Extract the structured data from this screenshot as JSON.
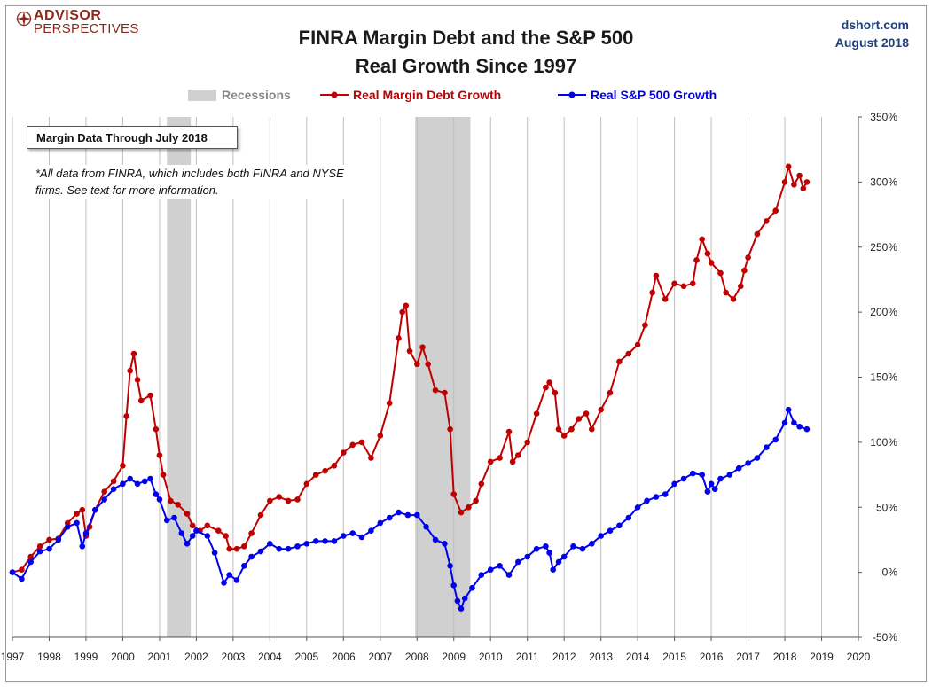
{
  "header": {
    "brand_line1": "ADVISOR",
    "brand_line2": "PERSPECTIVES",
    "title_line1": "FINRA Margin Debt and the S&P 500",
    "title_line2": "Real Growth Since 1997",
    "source": "dshort.com",
    "date": "August 2018"
  },
  "annotations": {
    "box_label": "Margin Data Through July 2018",
    "note": "*All data from FINRA, which includes both FINRA and NYSE firms. See text for more information."
  },
  "colors": {
    "margin": "#c00000",
    "sp500": "#0000ee",
    "recession": "#d0d0d0"
  },
  "chart_data": {
    "type": "line",
    "title": "FINRA Margin Debt and the S&P 500 Real Growth Since 1997",
    "x_axis": {
      "min": 1997,
      "max": 2020,
      "ticks": [
        "1997",
        "1998",
        "1999",
        "2000",
        "2001",
        "2002",
        "2003",
        "2004",
        "2005",
        "2006",
        "2007",
        "2008",
        "2009",
        "2010",
        "2011",
        "2012",
        "2013",
        "2014",
        "2015",
        "2016",
        "2017",
        "2018",
        "2019",
        "2020"
      ]
    },
    "y_axis": {
      "min": -50,
      "max": 350,
      "position": "right",
      "ticks": [
        "-50%",
        "0%",
        "50%",
        "100%",
        "150%",
        "200%",
        "250%",
        "300%",
        "350%"
      ],
      "tick_values": [
        -50,
        0,
        50,
        100,
        150,
        200,
        250,
        300,
        350
      ]
    },
    "grid": "vertical",
    "legend": {
      "placement": "top",
      "entries": [
        "Recessions",
        "Real Margin Debt Growth",
        "Real S&P 500 Growth"
      ]
    },
    "recessions": [
      {
        "start": 2001.2,
        "end": 2001.85
      },
      {
        "start": 2007.95,
        "end": 2009.45
      }
    ],
    "series": [
      {
        "name": "Real Margin Debt Growth",
        "points": [
          [
            1997.0,
            0
          ],
          [
            1997.25,
            2
          ],
          [
            1997.5,
            12
          ],
          [
            1997.75,
            20
          ],
          [
            1998.0,
            25
          ],
          [
            1998.25,
            26
          ],
          [
            1998.5,
            38
          ],
          [
            1998.75,
            45
          ],
          [
            1998.9,
            48
          ],
          [
            1999.0,
            28
          ],
          [
            1999.1,
            35
          ],
          [
            1999.25,
            48
          ],
          [
            1999.5,
            62
          ],
          [
            1999.75,
            70
          ],
          [
            2000.0,
            82
          ],
          [
            2000.1,
            120
          ],
          [
            2000.2,
            155
          ],
          [
            2000.3,
            168
          ],
          [
            2000.4,
            148
          ],
          [
            2000.5,
            132
          ],
          [
            2000.75,
            136
          ],
          [
            2000.9,
            110
          ],
          [
            2001.0,
            90
          ],
          [
            2001.1,
            75
          ],
          [
            2001.3,
            55
          ],
          [
            2001.5,
            52
          ],
          [
            2001.75,
            45
          ],
          [
            2001.9,
            36
          ],
          [
            2002.1,
            32
          ],
          [
            2002.3,
            36
          ],
          [
            2002.6,
            32
          ],
          [
            2002.8,
            28
          ],
          [
            2002.9,
            18
          ],
          [
            2003.1,
            18
          ],
          [
            2003.3,
            20
          ],
          [
            2003.5,
            30
          ],
          [
            2003.75,
            44
          ],
          [
            2004.0,
            55
          ],
          [
            2004.25,
            58
          ],
          [
            2004.5,
            55
          ],
          [
            2004.75,
            56
          ],
          [
            2005.0,
            68
          ],
          [
            2005.25,
            75
          ],
          [
            2005.5,
            78
          ],
          [
            2005.75,
            82
          ],
          [
            2006.0,
            92
          ],
          [
            2006.25,
            98
          ],
          [
            2006.5,
            100
          ],
          [
            2006.75,
            88
          ],
          [
            2007.0,
            105
          ],
          [
            2007.25,
            130
          ],
          [
            2007.5,
            180
          ],
          [
            2007.6,
            200
          ],
          [
            2007.7,
            205
          ],
          [
            2007.8,
            170
          ],
          [
            2008.0,
            160
          ],
          [
            2008.15,
            173
          ],
          [
            2008.3,
            160
          ],
          [
            2008.5,
            140
          ],
          [
            2008.75,
            138
          ],
          [
            2008.9,
            110
          ],
          [
            2009.0,
            60
          ],
          [
            2009.2,
            46
          ],
          [
            2009.4,
            50
          ],
          [
            2009.6,
            55
          ],
          [
            2009.75,
            68
          ],
          [
            2010.0,
            85
          ],
          [
            2010.25,
            88
          ],
          [
            2010.5,
            108
          ],
          [
            2010.6,
            85
          ],
          [
            2010.75,
            90
          ],
          [
            2011.0,
            100
          ],
          [
            2011.25,
            122
          ],
          [
            2011.5,
            142
          ],
          [
            2011.6,
            146
          ],
          [
            2011.75,
            138
          ],
          [
            2011.85,
            110
          ],
          [
            2012.0,
            105
          ],
          [
            2012.2,
            110
          ],
          [
            2012.4,
            118
          ],
          [
            2012.6,
            122
          ],
          [
            2012.75,
            110
          ],
          [
            2013.0,
            125
          ],
          [
            2013.25,
            138
          ],
          [
            2013.5,
            162
          ],
          [
            2013.75,
            168
          ],
          [
            2014.0,
            175
          ],
          [
            2014.2,
            190
          ],
          [
            2014.4,
            215
          ],
          [
            2014.5,
            228
          ],
          [
            2014.75,
            210
          ],
          [
            2015.0,
            222
          ],
          [
            2015.25,
            220
          ],
          [
            2015.5,
            222
          ],
          [
            2015.6,
            240
          ],
          [
            2015.75,
            256
          ],
          [
            2015.9,
            245
          ],
          [
            2016.0,
            238
          ],
          [
            2016.25,
            230
          ],
          [
            2016.4,
            215
          ],
          [
            2016.6,
            210
          ],
          [
            2016.8,
            220
          ],
          [
            2016.9,
            232
          ],
          [
            2017.0,
            242
          ],
          [
            2017.25,
            260
          ],
          [
            2017.5,
            270
          ],
          [
            2017.75,
            278
          ],
          [
            2018.0,
            300
          ],
          [
            2018.1,
            312
          ],
          [
            2018.25,
            298
          ],
          [
            2018.4,
            305
          ],
          [
            2018.5,
            295
          ],
          [
            2018.6,
            300
          ]
        ]
      },
      {
        "name": "Real S&P 500 Growth",
        "points": [
          [
            1997.0,
            0
          ],
          [
            1997.25,
            -5
          ],
          [
            1997.5,
            8
          ],
          [
            1997.75,
            16
          ],
          [
            1998.0,
            18
          ],
          [
            1998.25,
            25
          ],
          [
            1998.5,
            35
          ],
          [
            1998.75,
            38
          ],
          [
            1998.9,
            20
          ],
          [
            1999.0,
            30
          ],
          [
            1999.25,
            48
          ],
          [
            1999.5,
            56
          ],
          [
            1999.75,
            64
          ],
          [
            2000.0,
            68
          ],
          [
            2000.2,
            72
          ],
          [
            2000.4,
            68
          ],
          [
            2000.6,
            70
          ],
          [
            2000.75,
            72
          ],
          [
            2000.9,
            60
          ],
          [
            2001.0,
            56
          ],
          [
            2001.2,
            40
          ],
          [
            2001.4,
            42
          ],
          [
            2001.6,
            30
          ],
          [
            2001.75,
            22
          ],
          [
            2001.9,
            28
          ],
          [
            2002.0,
            32
          ],
          [
            2002.3,
            28
          ],
          [
            2002.5,
            15
          ],
          [
            2002.75,
            -8
          ],
          [
            2002.9,
            -2
          ],
          [
            2003.1,
            -6
          ],
          [
            2003.3,
            5
          ],
          [
            2003.5,
            12
          ],
          [
            2003.75,
            16
          ],
          [
            2004.0,
            22
          ],
          [
            2004.25,
            18
          ],
          [
            2004.5,
            18
          ],
          [
            2004.75,
            20
          ],
          [
            2005.0,
            22
          ],
          [
            2005.25,
            24
          ],
          [
            2005.5,
            24
          ],
          [
            2005.75,
            24
          ],
          [
            2006.0,
            28
          ],
          [
            2006.25,
            30
          ],
          [
            2006.5,
            27
          ],
          [
            2006.75,
            32
          ],
          [
            2007.0,
            38
          ],
          [
            2007.25,
            42
          ],
          [
            2007.5,
            46
          ],
          [
            2007.75,
            44
          ],
          [
            2008.0,
            44
          ],
          [
            2008.25,
            35
          ],
          [
            2008.5,
            25
          ],
          [
            2008.75,
            22
          ],
          [
            2008.9,
            5
          ],
          [
            2009.0,
            -10
          ],
          [
            2009.1,
            -22
          ],
          [
            2009.2,
            -28
          ],
          [
            2009.3,
            -20
          ],
          [
            2009.5,
            -12
          ],
          [
            2009.75,
            -2
          ],
          [
            2010.0,
            2
          ],
          [
            2010.25,
            5
          ],
          [
            2010.5,
            -2
          ],
          [
            2010.75,
            8
          ],
          [
            2011.0,
            12
          ],
          [
            2011.25,
            18
          ],
          [
            2011.5,
            20
          ],
          [
            2011.6,
            15
          ],
          [
            2011.7,
            2
          ],
          [
            2011.85,
            8
          ],
          [
            2012.0,
            12
          ],
          [
            2012.25,
            20
          ],
          [
            2012.5,
            18
          ],
          [
            2012.75,
            22
          ],
          [
            2013.0,
            28
          ],
          [
            2013.25,
            32
          ],
          [
            2013.5,
            36
          ],
          [
            2013.75,
            42
          ],
          [
            2014.0,
            50
          ],
          [
            2014.25,
            55
          ],
          [
            2014.5,
            58
          ],
          [
            2014.75,
            60
          ],
          [
            2015.0,
            68
          ],
          [
            2015.25,
            72
          ],
          [
            2015.5,
            76
          ],
          [
            2015.75,
            75
          ],
          [
            2015.9,
            62
          ],
          [
            2016.0,
            68
          ],
          [
            2016.1,
            64
          ],
          [
            2016.25,
            72
          ],
          [
            2016.5,
            75
          ],
          [
            2016.75,
            80
          ],
          [
            2017.0,
            84
          ],
          [
            2017.25,
            88
          ],
          [
            2017.5,
            96
          ],
          [
            2017.75,
            102
          ],
          [
            2018.0,
            115
          ],
          [
            2018.1,
            125
          ],
          [
            2018.25,
            115
          ],
          [
            2018.4,
            112
          ],
          [
            2018.6,
            110
          ]
        ]
      }
    ]
  }
}
